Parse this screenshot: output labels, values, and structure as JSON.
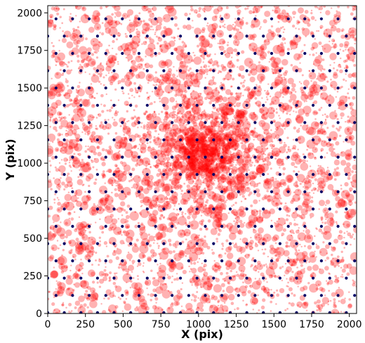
{
  "chart_data": {
    "type": "scatter",
    "title": "",
    "xlabel": "X (pix)",
    "ylabel": "Y (pix)",
    "xlim": [
      0,
      2048
    ],
    "ylim": [
      0,
      2048
    ],
    "xticks": [
      0,
      250,
      500,
      750,
      1000,
      1250,
      1500,
      1750,
      2000
    ],
    "yticks": [
      0,
      250,
      500,
      750,
      1000,
      1250,
      1500,
      1750,
      2000
    ],
    "grid": false,
    "legend": "none",
    "series": [
      {
        "marker": "circle",
        "color": "#ff0000",
        "alpha": 0.3,
        "distribution": "background-uniform-plus-central-concentration",
        "center": [
          1050,
          1080
        ],
        "approx_count": 5000
      },
      {
        "marker": "circle",
        "color": "#000066",
        "layout": "grid-lattice",
        "x_spacing": 110,
        "y_spacing": 115,
        "x_offset": 0,
        "y_offset": 5
      }
    ]
  }
}
